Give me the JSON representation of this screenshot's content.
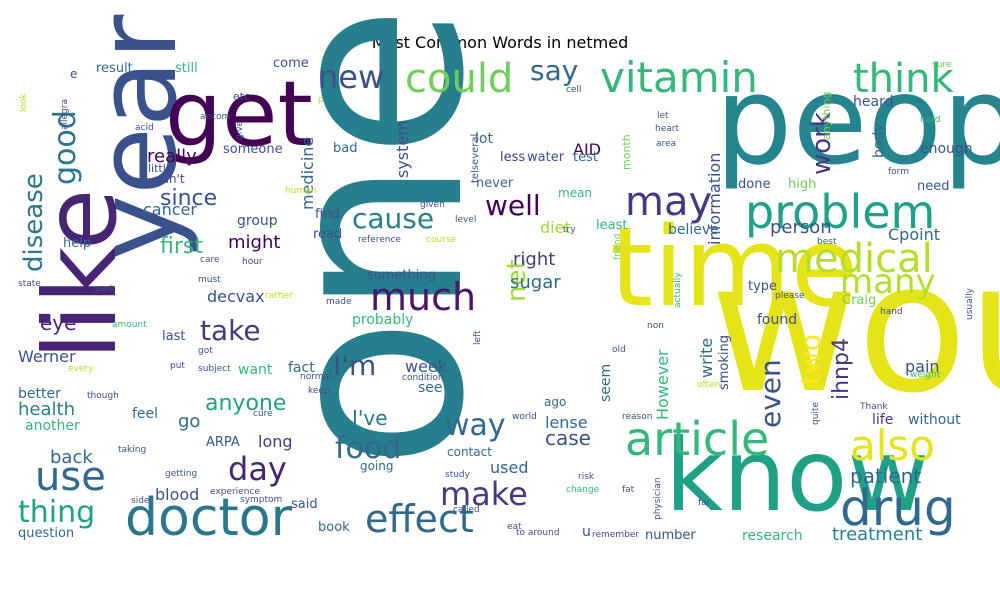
{
  "chart_data": {
    "type": "wordcloud",
    "title": "Most Common Words in netmed",
    "colormap": "viridis",
    "words": [
      {
        "text": "one",
        "weight": 1.0,
        "color": "#277f8e"
      },
      {
        "text": "would",
        "weight": 0.97,
        "color": "#e5e419"
      },
      {
        "text": "people",
        "weight": 0.71,
        "color": "#25858e"
      },
      {
        "text": "know",
        "weight": 0.68,
        "color": "#1fa188"
      },
      {
        "text": "time",
        "weight": 0.6,
        "color": "#e5e419"
      },
      {
        "text": "year",
        "weight": 0.6,
        "color": "#3b518b"
      },
      {
        "text": "like",
        "weight": 0.58,
        "color": "#482475"
      },
      {
        "text": "get",
        "weight": 0.52,
        "color": "#440154"
      },
      {
        "text": "use",
        "weight": 0.15,
        "color": "#31688e"
      },
      {
        "text": "doctor",
        "weight": 0.28,
        "color": "#2a768e"
      },
      {
        "text": "article",
        "weight": 0.26,
        "color": "#35b779"
      },
      {
        "text": "also",
        "weight": 0.22,
        "color": "#e5e419"
      },
      {
        "text": "drug",
        "weight": 0.24,
        "color": "#31688e"
      },
      {
        "text": "problem",
        "weight": 0.24,
        "color": "#1fa188"
      },
      {
        "text": "vitamin",
        "weight": 0.22,
        "color": "#35b779"
      },
      {
        "text": "think",
        "weight": 0.22,
        "color": "#35b779"
      },
      {
        "text": "could",
        "weight": 0.21,
        "color": "#6ece58"
      },
      {
        "text": "medical",
        "weight": 0.21,
        "color": "#b5de2b"
      },
      {
        "text": "may",
        "weight": 0.2,
        "color": "#443a83"
      },
      {
        "text": "much",
        "weight": 0.2,
        "color": "#481769"
      },
      {
        "text": "effect",
        "weight": 0.2,
        "color": "#31688e"
      },
      {
        "text": "new",
        "weight": 0.16,
        "color": "#3b518b"
      },
      {
        "text": "many",
        "weight": 0.17,
        "color": "#b5de2b"
      },
      {
        "text": "make",
        "weight": 0.15,
        "color": "#443a83"
      },
      {
        "text": "day",
        "weight": 0.15,
        "color": "#482475"
      },
      {
        "text": "take",
        "weight": 0.13,
        "color": "#443a83"
      },
      {
        "text": "food",
        "weight": 0.14,
        "color": "#31688e"
      },
      {
        "text": "way",
        "weight": 0.14,
        "color": "#31688e"
      },
      {
        "text": "thing",
        "weight": 0.14,
        "color": "#1fa188"
      },
      {
        "text": "well",
        "weight": 0.13,
        "color": "#440154"
      },
      {
        "text": "cause",
        "weight": 0.12,
        "color": "#277f8e"
      },
      {
        "text": "good",
        "weight": 0.13,
        "color": "#2a768e"
      },
      {
        "text": "work",
        "weight": 0.11,
        "color": "#443a83"
      },
      {
        "text": "say",
        "weight": 0.11,
        "color": "#31688e"
      },
      {
        "text": "even",
        "weight": 0.11,
        "color": "#3b518b"
      },
      {
        "text": "two",
        "weight": 0.11,
        "color": "#fde725"
      },
      {
        "text": "net",
        "weight": 0.1,
        "color": "#9fda3a"
      },
      {
        "text": "I'm",
        "weight": 0.11,
        "color": "#3b518b"
      },
      {
        "text": "disease",
        "weight": 0.1,
        "color": "#2a768e"
      },
      {
        "text": "ihnp4",
        "weight": 0.09,
        "color": "#443a83"
      },
      {
        "text": "since",
        "weight": 0.09,
        "color": "#3b518b"
      },
      {
        "text": "anyone",
        "weight": 0.09,
        "color": "#1fa188"
      },
      {
        "text": "first",
        "weight": 0.09,
        "color": "#35b779"
      },
      {
        "text": "patient",
        "weight": 0.08,
        "color": "#31688e"
      },
      {
        "text": "case",
        "weight": 0.08,
        "color": "#3b518b"
      },
      {
        "text": "I've",
        "weight": 0.08,
        "color": "#2a768e"
      },
      {
        "text": "treatment",
        "weight": 0.07,
        "color": "#277f8e"
      },
      {
        "text": "sugar",
        "weight": 0.07,
        "color": "#31688e"
      },
      {
        "text": "right",
        "weight": 0.07,
        "color": "#443a83"
      },
      {
        "text": "Cpoint",
        "weight": 0.07,
        "color": "#31688e"
      },
      {
        "text": "eye",
        "weight": 0.07,
        "color": "#482475"
      },
      {
        "text": "health",
        "weight": 0.07,
        "color": "#277f8e"
      },
      {
        "text": "go",
        "weight": 0.07,
        "color": "#31688e"
      },
      {
        "text": "back",
        "weight": 0.07,
        "color": "#31688e"
      },
      {
        "text": "might",
        "weight": 0.07,
        "color": "#440154"
      },
      {
        "text": "really",
        "weight": 0.07,
        "color": "#440154"
      },
      {
        "text": "cancer",
        "weight": 0.06,
        "color": "#31688e"
      },
      {
        "text": "person",
        "weight": 0.06,
        "color": "#3b518b"
      },
      {
        "text": "week",
        "weight": 0.06,
        "color": "#3b518b"
      },
      {
        "text": "lense",
        "weight": 0.06,
        "color": "#31688e"
      },
      {
        "text": "blood",
        "weight": 0.06,
        "color": "#3b518b"
      },
      {
        "text": "long",
        "weight": 0.06,
        "color": "#443a83"
      },
      {
        "text": "Werner",
        "weight": 0.06,
        "color": "#3b518b"
      },
      {
        "text": "decvax",
        "weight": 0.06,
        "color": "#3b518b"
      },
      {
        "text": "pain",
        "weight": 0.06,
        "color": "#3b518b"
      },
      {
        "text": "diet",
        "weight": 0.06,
        "color": "#9fda3a"
      },
      {
        "text": "used",
        "weight": 0.06,
        "color": "#31688e"
      },
      {
        "text": "write",
        "weight": 0.06,
        "color": "#31688e"
      },
      {
        "text": "However",
        "weight": 0.06,
        "color": "#35b779"
      },
      {
        "text": "information",
        "weight": 0.06,
        "color": "#3b518b"
      },
      {
        "text": "system",
        "weight": 0.06,
        "color": "#3b518b"
      },
      {
        "text": "medicine",
        "weight": 0.06,
        "color": "#31688e"
      },
      {
        "text": "AID",
        "weight": 0.06,
        "color": "#440154"
      },
      {
        "text": "fact",
        "weight": 0.05,
        "color": "#31688e"
      },
      {
        "text": "want",
        "weight": 0.05,
        "color": "#35b779"
      },
      {
        "text": "see",
        "weight": 0.05,
        "color": "#31688e"
      },
      {
        "text": "seem",
        "weight": 0.05,
        "color": "#31688e"
      },
      {
        "text": "another",
        "weight": 0.05,
        "color": "#35b779"
      },
      {
        "text": "feel",
        "weight": 0.05,
        "color": "#31688e"
      },
      {
        "text": "better",
        "weight": 0.05,
        "color": "#31688e"
      },
      {
        "text": "found",
        "weight": 0.05,
        "color": "#3b518b"
      },
      {
        "text": "life",
        "weight": 0.05,
        "color": "#443a83"
      },
      {
        "text": "without",
        "weight": 0.05,
        "color": "#31688e"
      },
      {
        "text": "body",
        "weight": 0.05,
        "color": "#31688e"
      },
      {
        "text": "enough",
        "weight": 0.05,
        "color": "#3b518b"
      },
      {
        "text": "heard",
        "weight": 0.05,
        "color": "#3b518b"
      },
      {
        "text": "probably",
        "weight": 0.05,
        "color": "#35b779"
      },
      {
        "text": "something",
        "weight": 0.05,
        "color": "#3b518b"
      },
      {
        "text": "research",
        "weight": 0.05,
        "color": "#35b779"
      },
      {
        "text": "believe",
        "weight": 0.05,
        "color": "#31688e"
      },
      {
        "text": "lot",
        "weight": 0.05,
        "color": "#31688e"
      },
      {
        "text": "read",
        "weight": 0.05,
        "color": "#3b518b"
      },
      {
        "text": "find",
        "weight": 0.05,
        "color": "#3b518b"
      },
      {
        "text": "group",
        "weight": 0.05,
        "color": "#3b518b"
      },
      {
        "text": "bad",
        "weight": 0.05,
        "color": "#31688e"
      },
      {
        "text": "someone",
        "weight": 0.05,
        "color": "#3b518b"
      },
      {
        "text": "come",
        "weight": 0.05,
        "color": "#3b518b"
      },
      {
        "text": "result",
        "weight": 0.05,
        "color": "#31688e"
      },
      {
        "text": "still",
        "weight": 0.05,
        "color": "#35b779"
      },
      {
        "text": "help",
        "weight": 0.05,
        "color": "#31688e"
      },
      {
        "text": "type",
        "weight": 0.05,
        "color": "#3b518b"
      },
      {
        "text": "Craig",
        "weight": 0.05,
        "color": "#6ece58"
      },
      {
        "text": "need",
        "weight": 0.05,
        "color": "#3b518b"
      },
      {
        "text": "done",
        "weight": 0.05,
        "color": "#3b518b"
      },
      {
        "text": "high",
        "weight": 0.05,
        "color": "#6ece58"
      },
      {
        "text": "smoking",
        "weight": 0.05,
        "color": "#3b518b"
      },
      {
        "text": "water",
        "weight": 0.04,
        "color": "#3b518b"
      },
      {
        "text": "test",
        "weight": 0.04,
        "color": "#31688e"
      },
      {
        "text": "less",
        "weight": 0.04,
        "color": "#443a83"
      },
      {
        "text": "never",
        "weight": 0.04,
        "color": "#31688e"
      },
      {
        "text": "least",
        "weight": 0.04,
        "color": "#35b779"
      },
      {
        "text": "last",
        "weight": 0.04,
        "color": "#3b518b"
      },
      {
        "text": "ARPA",
        "weight": 0.04,
        "color": "#3b518b"
      },
      {
        "text": "question",
        "weight": 0.04,
        "color": "#31688e"
      },
      {
        "text": "said",
        "weight": 0.04,
        "color": "#3b518b"
      },
      {
        "text": "book",
        "weight": 0.04,
        "color": "#31688e"
      },
      {
        "text": "going",
        "weight": 0.04,
        "color": "#31688e"
      },
      {
        "text": "contact",
        "weight": 0.04,
        "color": "#31688e"
      },
      {
        "text": "ago",
        "weight": 0.04,
        "color": "#31688e"
      },
      {
        "text": "number",
        "weight": 0.04,
        "color": "#3b518b"
      },
      {
        "text": "u",
        "weight": 0.04,
        "color": "#3b518b"
      },
      {
        "text": "can't",
        "weight": 0.04,
        "color": "#3b518b"
      },
      {
        "text": "little",
        "weight": 0.03,
        "color": "#3b518b"
      },
      {
        "text": "etc",
        "weight": 0.03,
        "color": "#3b518b"
      },
      {
        "text": "e",
        "weight": 0.03,
        "color": "#3b518b"
      },
      {
        "text": "mean",
        "weight": 0.03,
        "color": "#35b779"
      },
      {
        "text": "telseveral",
        "weight": 0.03,
        "color": "#3b518b"
      },
      {
        "text": "month",
        "weight": 0.03,
        "color": "#6ece58"
      },
      {
        "text": "anything",
        "weight": 0.03,
        "color": "#6ece58"
      },
      {
        "text": "acid",
        "weight": 0.02,
        "color": "#3b518b"
      },
      {
        "text": "aecom",
        "weight": 0.02,
        "color": "#3b518b"
      },
      {
        "text": "give",
        "weight": 0.02,
        "color": "#3b518b"
      },
      {
        "text": "cell",
        "weight": 0.02,
        "color": "#3b518b"
      },
      {
        "text": "let",
        "weight": 0.02,
        "color": "#3b518b"
      },
      {
        "text": "heart",
        "weight": 0.02,
        "color": "#3b518b"
      },
      {
        "text": "area",
        "weight": 0.02,
        "color": "#3b518b"
      },
      {
        "text": "hard",
        "weight": 0.02,
        "color": "#35b779"
      },
      {
        "text": "sure",
        "weight": 0.02,
        "color": "#6ece58"
      },
      {
        "text": "form",
        "weight": 0.02,
        "color": "#3b518b"
      },
      {
        "text": "given",
        "weight": 0.02,
        "color": "#3b518b"
      },
      {
        "text": "level",
        "weight": 0.02,
        "color": "#3b518b"
      },
      {
        "text": "try",
        "weight": 0.02,
        "color": "#3b518b"
      },
      {
        "text": "friend",
        "weight": 0.02,
        "color": "#6ece58"
      },
      {
        "text": "best",
        "weight": 0.02,
        "color": "#3b518b"
      },
      {
        "text": "please",
        "weight": 0.02,
        "color": "#3b518b"
      },
      {
        "text": "hand",
        "weight": 0.02,
        "color": "#3b518b"
      },
      {
        "text": "actually",
        "weight": 0.02,
        "color": "#35b779"
      },
      {
        "text": "usually",
        "weight": 0.02,
        "color": "#3b518b"
      },
      {
        "text": "reference",
        "weight": 0.02,
        "color": "#3b518b"
      },
      {
        "text": "course",
        "weight": 0.02,
        "color": "#b5de2b"
      },
      {
        "text": "hour",
        "weight": 0.02,
        "color": "#3b518b"
      },
      {
        "text": "care",
        "weight": 0.02,
        "color": "#3b518b"
      },
      {
        "text": "rather",
        "weight": 0.02,
        "color": "#b5de2b"
      },
      {
        "text": "made",
        "weight": 0.02,
        "color": "#3b518b"
      },
      {
        "text": "must",
        "weight": 0.02,
        "color": "#3b518b"
      },
      {
        "text": "part",
        "weight": 0.02,
        "color": "#3b518b"
      },
      {
        "text": "state",
        "weight": 0.02,
        "color": "#3b518b"
      },
      {
        "text": "amount",
        "weight": 0.02,
        "color": "#35b779"
      },
      {
        "text": "got",
        "weight": 0.02,
        "color": "#3b518b"
      },
      {
        "text": "subject",
        "weight": 0.02,
        "color": "#3b518b"
      },
      {
        "text": "put",
        "weight": 0.02,
        "color": "#3b518b"
      },
      {
        "text": "every",
        "weight": 0.02,
        "color": "#b5de2b"
      },
      {
        "text": "though",
        "weight": 0.02,
        "color": "#3b518b"
      },
      {
        "text": "normal",
        "weight": 0.02,
        "color": "#3b518b"
      },
      {
        "text": "keep",
        "weight": 0.02,
        "color": "#3b518b"
      },
      {
        "text": "condition",
        "weight": 0.02,
        "color": "#3b518b"
      },
      {
        "text": "left",
        "weight": 0.02,
        "color": "#3b518b"
      },
      {
        "text": "old",
        "weight": 0.02,
        "color": "#3b518b"
      },
      {
        "text": "non",
        "weight": 0.02,
        "color": "#3b518b"
      },
      {
        "text": "often",
        "weight": 0.02,
        "color": "#b5de2b"
      },
      {
        "text": "weight",
        "weight": 0.02,
        "color": "#35b779"
      },
      {
        "text": "Thank",
        "weight": 0.02,
        "color": "#3b518b"
      },
      {
        "text": "quite",
        "weight": 0.02,
        "color": "#3b518b"
      },
      {
        "text": "cure",
        "weight": 0.02,
        "color": "#3b518b"
      },
      {
        "text": "taking",
        "weight": 0.02,
        "color": "#3b518b"
      },
      {
        "text": "getting",
        "weight": 0.02,
        "color": "#3b518b"
      },
      {
        "text": "experience",
        "weight": 0.02,
        "color": "#3b518b"
      },
      {
        "text": "symptom",
        "weight": 0.02,
        "color": "#3b518b"
      },
      {
        "text": "side",
        "weight": 0.02,
        "color": "#3b518b"
      },
      {
        "text": "world",
        "weight": 0.02,
        "color": "#3b518b"
      },
      {
        "text": "study",
        "weight": 0.02,
        "color": "#3b518b"
      },
      {
        "text": "called",
        "weight": 0.02,
        "color": "#3b518b"
      },
      {
        "text": "risk",
        "weight": 0.02,
        "color": "#3b518b"
      },
      {
        "text": "change",
        "weight": 0.02,
        "color": "#35b779"
      },
      {
        "text": "fat",
        "weight": 0.02,
        "color": "#3b518b"
      },
      {
        "text": "physician",
        "weight": 0.02,
        "color": "#3b518b"
      },
      {
        "text": "far",
        "weight": 0.02,
        "color": "#3b518b"
      },
      {
        "text": "reason",
        "weight": 0.02,
        "color": "#3b518b"
      },
      {
        "text": "eat",
        "weight": 0.02,
        "color": "#3b518b"
      },
      {
        "text": "to around",
        "weight": 0.02,
        "color": "#3b518b"
      },
      {
        "text": "remember",
        "weight": 0.02,
        "color": "#3b518b"
      },
      {
        "text": "human",
        "weight": 0.02,
        "color": "#b5de2b"
      },
      {
        "text": "look",
        "weight": 0.02,
        "color": "#b5de2b"
      },
      {
        "text": "allegra",
        "weight": 0.02,
        "color": "#3b518b"
      },
      {
        "text": "p",
        "weight": 0.02,
        "color": "#b5de2b"
      }
    ]
  }
}
